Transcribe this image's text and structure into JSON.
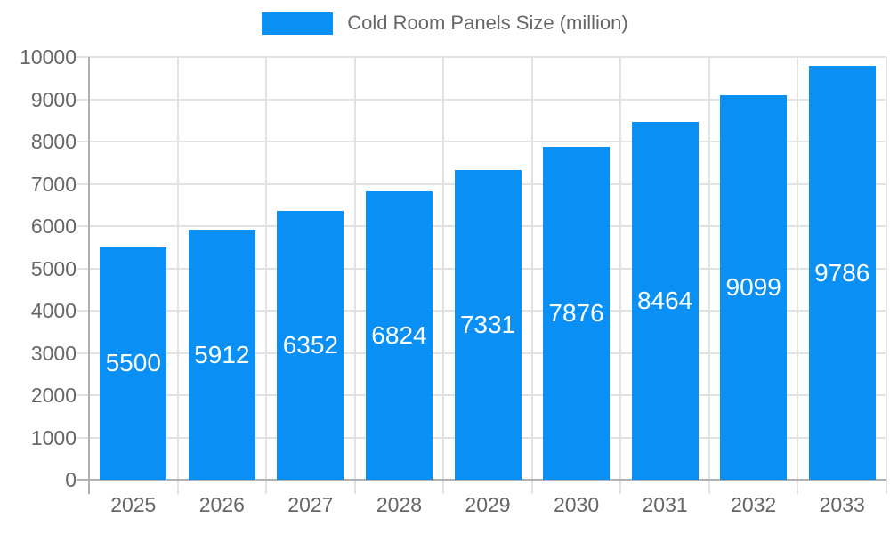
{
  "legend": {
    "label": "Cold Room Panels Size (million)"
  },
  "colors": {
    "bar": "#0a90f5",
    "grid": "#e2e2e2",
    "axis": "#b0b0b0",
    "axis_text": "#666666",
    "value_label_text": "#ffffff",
    "background": "#ffffff"
  },
  "chart_data": {
    "type": "bar",
    "title": "Cold Room Panels Size (million)",
    "series_name": "Cold Room Panels Size (million)",
    "categories": [
      "2025",
      "2026",
      "2027",
      "2028",
      "2029",
      "2030",
      "2031",
      "2032",
      "2033"
    ],
    "values": [
      5500,
      5912,
      6352,
      6824,
      7331,
      7876,
      8464,
      9099,
      9786
    ],
    "xlabel": "",
    "ylabel": "",
    "ylim": [
      0,
      10000
    ],
    "ytick_step": 1000,
    "ytick_labels": [
      "0",
      "1000",
      "2000",
      "3000",
      "4000",
      "5000",
      "6000",
      "7000",
      "8000",
      "9000",
      "10000"
    ],
    "grid": true,
    "legend_position": "top-center",
    "value_labels_position": "inside-center"
  }
}
